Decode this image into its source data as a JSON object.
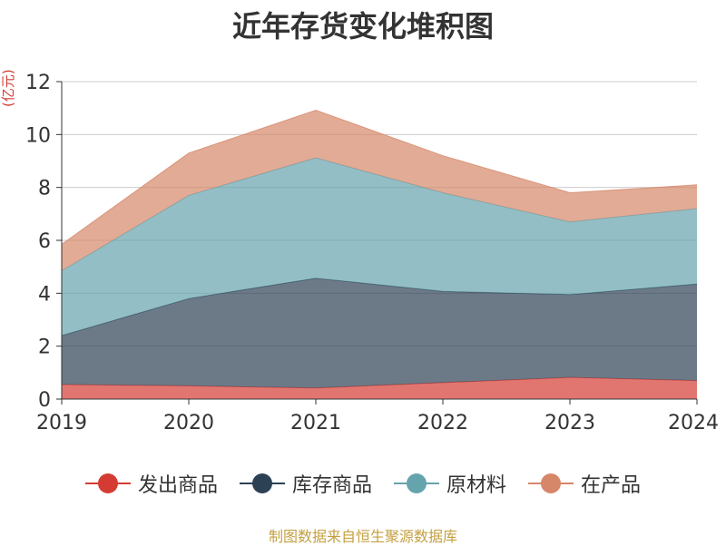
{
  "chart_data": {
    "type": "area",
    "stacked": true,
    "title": "近年存货变化堆积图",
    "unit": "(亿元)",
    "xlabel": "",
    "ylabel": "",
    "x": [
      "2019",
      "2020",
      "2021",
      "2022",
      "2023",
      "2024"
    ],
    "ylim": [
      0,
      12
    ],
    "yticks": [
      0,
      2,
      4,
      6,
      8,
      10,
      12
    ],
    "grid": true,
    "legend_position": "bottom",
    "series": [
      {
        "name": "发出商品",
        "color": "#d43c33",
        "values": [
          0.55,
          0.5,
          0.42,
          0.62,
          0.82,
          0.7
        ]
      },
      {
        "name": "库存商品",
        "color": "#2d4155",
        "values": [
          1.85,
          3.3,
          4.15,
          3.45,
          3.13,
          3.65
        ]
      },
      {
        "name": "原材料",
        "color": "#65a3ad",
        "values": [
          2.45,
          3.9,
          4.55,
          3.73,
          2.75,
          2.85
        ]
      },
      {
        "name": "在产品",
        "color": "#d6876a",
        "values": [
          1.0,
          1.6,
          1.8,
          1.4,
          1.1,
          0.9
        ]
      }
    ]
  },
  "footer": {
    "source": "制图数据来自恒生聚源数据库"
  }
}
